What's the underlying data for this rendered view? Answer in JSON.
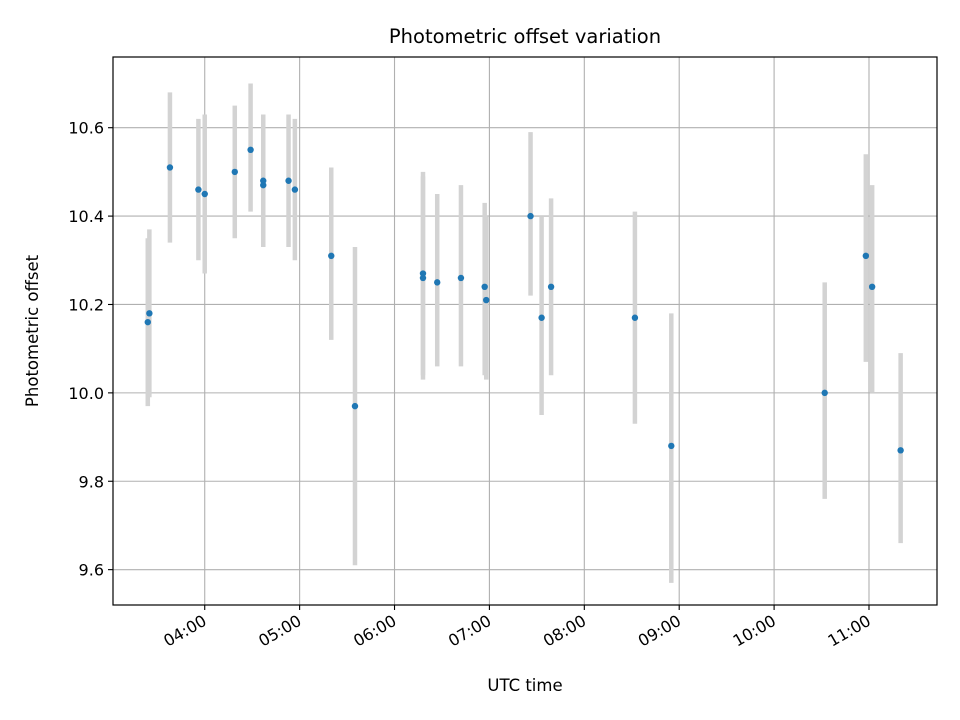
{
  "chart_data": {
    "type": "scatter",
    "title": "Photometric offset variation",
    "xlabel": "UTC time",
    "ylabel": "Photometric offset",
    "grid": true,
    "x_is_time": true,
    "xlim": [
      "03:02",
      "11:43"
    ],
    "ylim": [
      9.52,
      10.76
    ],
    "xticks": [
      "04:00",
      "05:00",
      "06:00",
      "07:00",
      "08:00",
      "09:00",
      "10:00",
      "11:00"
    ],
    "yticks": [
      9.6,
      9.8,
      10.0,
      10.2,
      10.4,
      10.6
    ],
    "ytick_labels": [
      "9.6",
      "9.8",
      "10.0",
      "10.2",
      "10.4",
      "10.6"
    ],
    "marker_color": "#1f77b4",
    "errorbar_color": "#d3d3d3",
    "points": [
      {
        "x": "03:24",
        "y": 10.16,
        "ylow": 9.97,
        "yhigh": 10.35
      },
      {
        "x": "03:25",
        "y": 10.18,
        "ylow": 9.99,
        "yhigh": 10.37
      },
      {
        "x": "03:38",
        "y": 10.51,
        "ylow": 10.34,
        "yhigh": 10.68
      },
      {
        "x": "03:56",
        "y": 10.46,
        "ylow": 10.3,
        "yhigh": 10.62
      },
      {
        "x": "04:00",
        "y": 10.45,
        "ylow": 10.27,
        "yhigh": 10.63
      },
      {
        "x": "04:19",
        "y": 10.5,
        "ylow": 10.35,
        "yhigh": 10.65
      },
      {
        "x": "04:29",
        "y": 10.55,
        "ylow": 10.41,
        "yhigh": 10.7
      },
      {
        "x": "04:37",
        "y": 10.47,
        "ylow": 10.33,
        "yhigh": 10.62
      },
      {
        "x": "04:37",
        "y": 10.48,
        "ylow": 10.33,
        "yhigh": 10.63
      },
      {
        "x": "04:53",
        "y": 10.48,
        "ylow": 10.33,
        "yhigh": 10.63
      },
      {
        "x": "04:57",
        "y": 10.46,
        "ylow": 10.3,
        "yhigh": 10.62
      },
      {
        "x": "05:20",
        "y": 10.31,
        "ylow": 10.12,
        "yhigh": 10.51
      },
      {
        "x": "05:35",
        "y": 9.97,
        "ylow": 9.61,
        "yhigh": 10.33
      },
      {
        "x": "06:18",
        "y": 10.26,
        "ylow": 10.03,
        "yhigh": 10.5
      },
      {
        "x": "06:18",
        "y": 10.27,
        "ylow": 10.04,
        "yhigh": 10.49
      },
      {
        "x": "06:27",
        "y": 10.25,
        "ylow": 10.06,
        "yhigh": 10.45
      },
      {
        "x": "06:42",
        "y": 10.26,
        "ylow": 10.06,
        "yhigh": 10.47
      },
      {
        "x": "06:57",
        "y": 10.24,
        "ylow": 10.04,
        "yhigh": 10.43
      },
      {
        "x": "06:58",
        "y": 10.21,
        "ylow": 10.03,
        "yhigh": 10.4
      },
      {
        "x": "07:26",
        "y": 10.4,
        "ylow": 10.22,
        "yhigh": 10.59
      },
      {
        "x": "07:33",
        "y": 10.17,
        "ylow": 9.95,
        "yhigh": 10.4
      },
      {
        "x": "07:39",
        "y": 10.24,
        "ylow": 10.04,
        "yhigh": 10.44
      },
      {
        "x": "08:32",
        "y": 10.17,
        "ylow": 9.93,
        "yhigh": 10.41
      },
      {
        "x": "08:55",
        "y": 9.88,
        "ylow": 9.57,
        "yhigh": 10.18
      },
      {
        "x": "10:32",
        "y": 10.0,
        "ylow": 9.76,
        "yhigh": 10.25
      },
      {
        "x": "10:58",
        "y": 10.31,
        "ylow": 10.07,
        "yhigh": 10.54
      },
      {
        "x": "11:02",
        "y": 10.24,
        "ylow": 10.0,
        "yhigh": 10.47
      },
      {
        "x": "11:20",
        "y": 9.87,
        "ylow": 9.66,
        "yhigh": 10.09
      }
    ]
  }
}
